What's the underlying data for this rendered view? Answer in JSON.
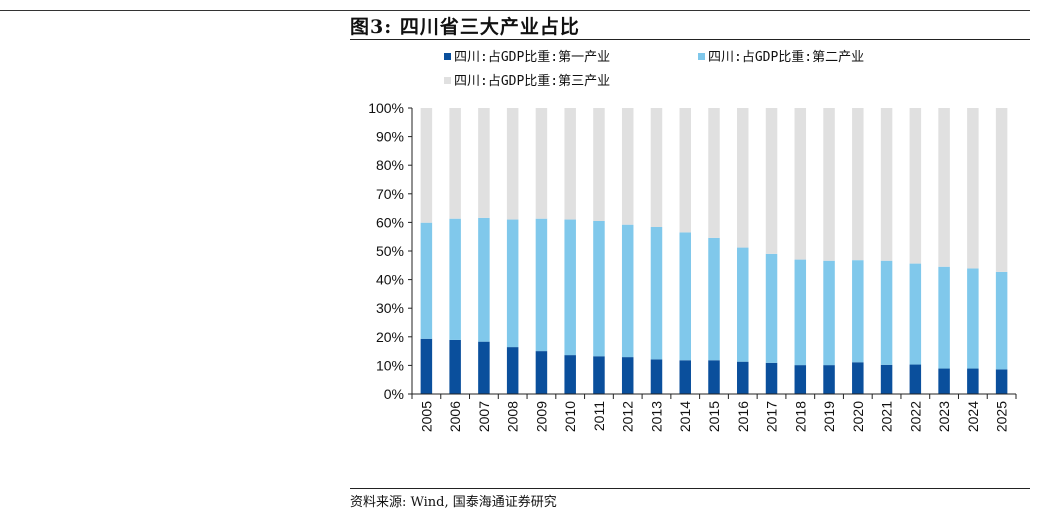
{
  "header": {
    "title": "图3:  四川省三大产业占比"
  },
  "footer": {
    "source": "资料来源:  Wind, 国泰海通证券研究"
  },
  "chart_data": {
    "type": "bar",
    "stacked": true,
    "categories": [
      "2005",
      "2006",
      "2007",
      "2008",
      "2009",
      "2010",
      "2011",
      "2012",
      "2013",
      "2014",
      "2015",
      "2016",
      "2017",
      "2018",
      "2019",
      "2020",
      "2021",
      "2022",
      "2023",
      "2024",
      "2025"
    ],
    "series": [
      {
        "name": "四川:占GDP比重:第一产业",
        "color": "#0a4f9c",
        "values": [
          19.3,
          18.9,
          18.3,
          16.4,
          15.0,
          13.6,
          13.2,
          12.9,
          12.1,
          11.8,
          11.8,
          11.3,
          10.9,
          10.1,
          10.1,
          11.1,
          10.2,
          10.3,
          8.9,
          8.9,
          8.6
        ]
      },
      {
        "name": "四川:占GDP比重:第二产业",
        "color": "#80c8eb",
        "values": [
          40.6,
          42.4,
          43.3,
          44.6,
          46.3,
          47.4,
          47.3,
          46.3,
          46.3,
          44.7,
          42.8,
          39.9,
          38.1,
          36.9,
          36.5,
          35.7,
          36.4,
          35.3,
          35.6,
          35.0,
          34.1
        ]
      },
      {
        "name": "四川:占GDP比重:第三产业",
        "color": "#e0e0e0",
        "values": [
          40.1,
          38.7,
          38.4,
          39.0,
          38.7,
          39.0,
          39.5,
          40.8,
          41.6,
          43.5,
          45.4,
          48.8,
          51.0,
          53.0,
          53.4,
          53.2,
          53.4,
          54.4,
          55.5,
          56.1,
          57.3
        ]
      }
    ],
    "yticks": [
      "0%",
      "10%",
      "20%",
      "30%",
      "40%",
      "50%",
      "60%",
      "70%",
      "80%",
      "90%",
      "100%"
    ],
    "ylim": [
      0,
      100
    ],
    "legend_position": "top",
    "grid": false
  }
}
